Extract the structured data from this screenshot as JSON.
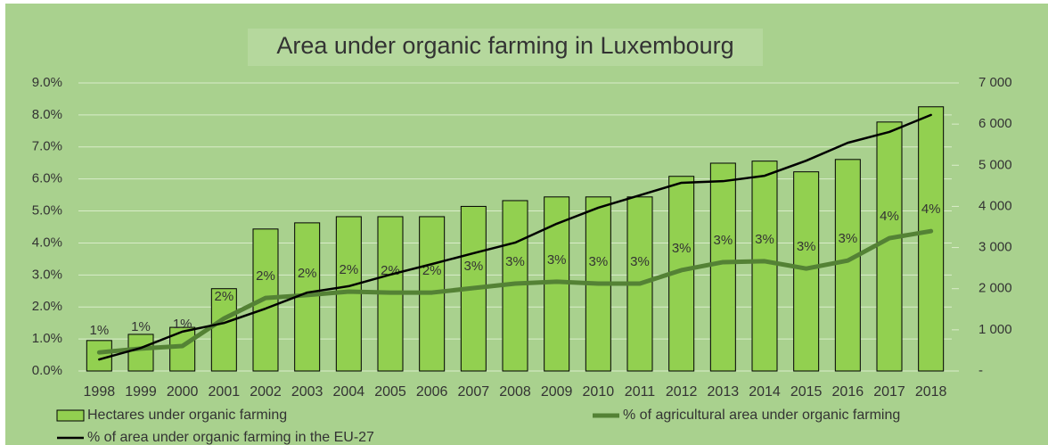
{
  "chart_data": {
    "type": "bar-line",
    "title": "Area under organic farming in Luxembourg",
    "categories": [
      "1998",
      "1999",
      "2000",
      "2001",
      "2002",
      "2003",
      "2004",
      "2005",
      "2006",
      "2007",
      "2008",
      "2009",
      "2010",
      "2011",
      "2012",
      "2013",
      "2014",
      "2015",
      "2016",
      "2017",
      "2018"
    ],
    "series": [
      {
        "name": "Hectares under organic farming",
        "type": "bar",
        "axis": "y2",
        "color": "#92d050",
        "values": [
          740,
          890,
          1060,
          2000,
          3450,
          3600,
          3750,
          3750,
          3750,
          4000,
          4140,
          4230,
          4230,
          4230,
          4730,
          5050,
          5100,
          4840,
          5140,
          6050,
          6420
        ]
      },
      {
        "name": "% of agricultural area under organic farming",
        "type": "line",
        "color": "#548235",
        "values": [
          0.58,
          0.7,
          0.78,
          1.64,
          2.28,
          2.37,
          2.48,
          2.45,
          2.45,
          2.59,
          2.73,
          2.79,
          2.73,
          2.73,
          3.15,
          3.4,
          3.43,
          3.2,
          3.45,
          4.15,
          4.37
        ],
        "value_labels": [
          "1%",
          "1%",
          "1%",
          "2%",
          "2%",
          "2%",
          "2%",
          "2%",
          "2%",
          "3%",
          "3%",
          "3%",
          "3%",
          "3%",
          "3%",
          "3%",
          "3%",
          "3%",
          "3%",
          "4%",
          "4%"
        ]
      },
      {
        "name": "% of area under organic farming in the EU-27",
        "type": "line",
        "color": "#000000",
        "values": [
          0.36,
          0.72,
          1.23,
          1.5,
          1.95,
          2.45,
          2.65,
          3.01,
          3.34,
          3.68,
          4.01,
          4.6,
          5.1,
          5.49,
          5.88,
          5.93,
          6.1,
          6.57,
          7.13,
          7.47,
          8.0
        ]
      }
    ],
    "ylim": [
      0,
      9
    ],
    "yticks": [
      {
        "value": 0,
        "label": "0.0%"
      },
      {
        "value": 1,
        "label": "1.0%"
      },
      {
        "value": 2,
        "label": "2.0%"
      },
      {
        "value": 3,
        "label": "3.0%"
      },
      {
        "value": 4,
        "label": "4.0%"
      },
      {
        "value": 5,
        "label": "5.0%"
      },
      {
        "value": 6,
        "label": "6.0%"
      },
      {
        "value": 7,
        "label": "7.0%"
      },
      {
        "value": 8,
        "label": "8.0%"
      },
      {
        "value": 9,
        "label": "9.0%"
      }
    ],
    "y2lim": [
      0,
      7000
    ],
    "y2ticks": [
      {
        "value": 0,
        "label": "-"
      },
      {
        "value": 1000,
        "label": "1 000"
      },
      {
        "value": 2000,
        "label": "2 000"
      },
      {
        "value": 3000,
        "label": "3 000"
      },
      {
        "value": 4000,
        "label": "4 000"
      },
      {
        "value": 5000,
        "label": "5 000"
      },
      {
        "value": 6000,
        "label": "6 000"
      },
      {
        "value": 7000,
        "label": "7 000"
      }
    ],
    "grid": true
  }
}
